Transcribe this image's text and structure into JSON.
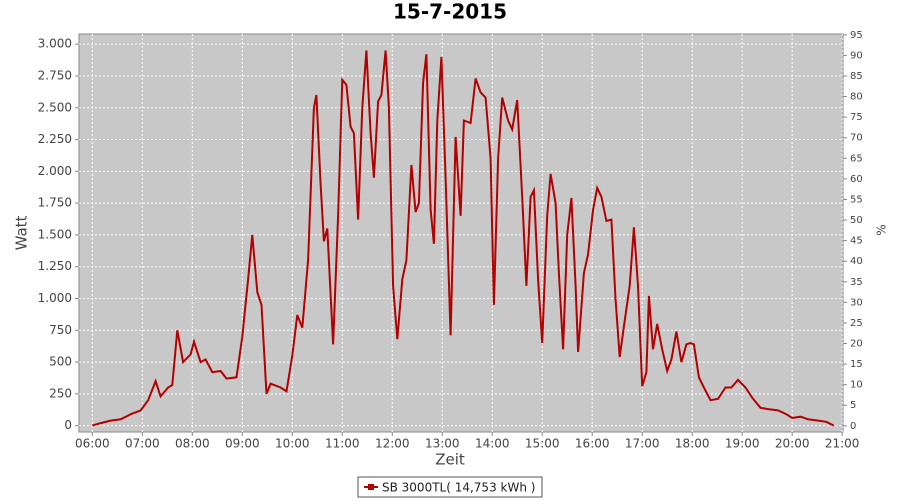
{
  "chart_data": {
    "type": "line",
    "title": "15-7-2015",
    "x_label": "Zeit",
    "y_label": "Watt",
    "y2_label": "%",
    "x": [
      "06:00",
      "06:10",
      "06:22",
      "06:34",
      "06:46",
      "06:58",
      "07:07",
      "07:16",
      "07:22",
      "07:31",
      "07:36",
      "07:42",
      "07:49",
      "07:58",
      "08:02",
      "08:10",
      "08:16",
      "08:24",
      "08:34",
      "08:41",
      "08:53",
      "09:00",
      "09:07",
      "09:12",
      "09:18",
      "09:23",
      "09:29",
      "09:34",
      "09:46",
      "09:53",
      "10:00",
      "10:06",
      "10:12",
      "10:19",
      "10:26",
      "10:29",
      "10:34",
      "10:38",
      "10:42",
      "10:49",
      "10:55",
      "11:00",
      "11:05",
      "11:10",
      "11:14",
      "11:19",
      "11:24",
      "11:29",
      "11:34",
      "11:38",
      "11:43",
      "11:47",
      "11:52",
      "11:56",
      "12:01",
      "12:06",
      "12:12",
      "12:17",
      "12:23",
      "12:28",
      "12:32",
      "12:37",
      "12:41",
      "12:46",
      "12:50",
      "12:54",
      "12:59",
      "13:04",
      "13:10",
      "13:16",
      "13:22",
      "13:26",
      "13:34",
      "13:40",
      "13:46",
      "13:52",
      "13:58",
      "14:02",
      "14:07",
      "14:12",
      "14:19",
      "14:24",
      "14:30",
      "14:36",
      "14:41",
      "14:46",
      "14:50",
      "14:55",
      "15:00",
      "15:06",
      "15:10",
      "15:16",
      "15:20",
      "15:25",
      "15:30",
      "15:35",
      "15:40",
      "15:43",
      "15:50",
      "15:55",
      "16:01",
      "16:06",
      "16:11",
      "16:17",
      "16:23",
      "16:28",
      "16:33",
      "16:38",
      "16:45",
      "16:50",
      "16:55",
      "17:00",
      "17:05",
      "17:08",
      "17:13",
      "17:18",
      "17:24",
      "17:30",
      "17:35",
      "17:41",
      "17:47",
      "17:53",
      "17:58",
      "18:02",
      "18:08",
      "18:14",
      "18:22",
      "18:31",
      "18:40",
      "18:47",
      "18:55",
      "19:04",
      "19:12",
      "19:22",
      "19:31",
      "19:43",
      "19:53",
      "20:00",
      "20:10",
      "20:19",
      "20:31",
      "20:41",
      "20:50"
    ],
    "series": [
      {
        "name": "SB 3000TL( 14,753 kWh )",
        "color": "#b30000",
        "values": [
          0,
          20,
          40,
          50,
          90,
          120,
          200,
          350,
          230,
          300,
          320,
          750,
          500,
          560,
          660,
          500,
          520,
          420,
          430,
          370,
          380,
          700,
          1150,
          1500,
          1050,
          950,
          250,
          330,
          300,
          270,
          550,
          870,
          770,
          1300,
          2500,
          2600,
          1900,
          1450,
          1550,
          640,
          1650,
          2720,
          2680,
          2350,
          2300,
          1620,
          2500,
          2950,
          2300,
          1950,
          2550,
          2600,
          2950,
          2500,
          1100,
          680,
          1150,
          1300,
          2050,
          1680,
          1750,
          2700,
          2920,
          1700,
          1430,
          2400,
          2900,
          1950,
          710,
          2270,
          1650,
          2400,
          2380,
          2730,
          2620,
          2580,
          2100,
          950,
          2100,
          2580,
          2400,
          2330,
          2560,
          1800,
          1100,
          1800,
          1850,
          1150,
          650,
          1650,
          1980,
          1750,
          1200,
          600,
          1500,
          1790,
          1100,
          580,
          1200,
          1350,
          1700,
          1870,
          1800,
          1610,
          1620,
          1000,
          540,
          780,
          1100,
          1560,
          1100,
          310,
          420,
          1020,
          600,
          800,
          600,
          430,
          520,
          740,
          500,
          640,
          650,
          640,
          380,
          300,
          200,
          210,
          300,
          300,
          360,
          300,
          220,
          140,
          130,
          120,
          90,
          60,
          70,
          50,
          40,
          30,
          0
        ]
      }
    ],
    "xlim": [
      "05:44",
      "21:01"
    ],
    "xticks": [
      "06:00",
      "07:00",
      "08:00",
      "09:00",
      "10:00",
      "11:00",
      "12:00",
      "13:00",
      "14:00",
      "15:00",
      "16:00",
      "17:00",
      "18:00",
      "19:00",
      "20:00",
      "21:00"
    ],
    "ylim": [
      -50,
      3080
    ],
    "yticks": [
      0,
      250,
      500,
      750,
      {
        "value": 1000,
        "label": "1.000"
      },
      {
        "value": 1250,
        "label": "1.250"
      },
      {
        "value": 1500,
        "label": "1.500"
      },
      {
        "value": 1750,
        "label": "1.750"
      },
      {
        "value": 2000,
        "label": "2.000"
      },
      {
        "value": 2250,
        "label": "2.250"
      },
      {
        "value": 2500,
        "label": "2.500"
      },
      {
        "value": 2750,
        "label": "2.750"
      },
      {
        "value": 3000,
        "label": "3.000"
      }
    ],
    "y2lim": [
      -1.5,
      95.2
    ],
    "y2ticks": [
      0,
      5,
      10,
      15,
      20,
      25,
      30,
      35,
      40,
      45,
      50,
      55,
      60,
      65,
      70,
      75,
      80,
      85,
      90,
      95
    ],
    "grid": true,
    "legend": "bottom"
  }
}
